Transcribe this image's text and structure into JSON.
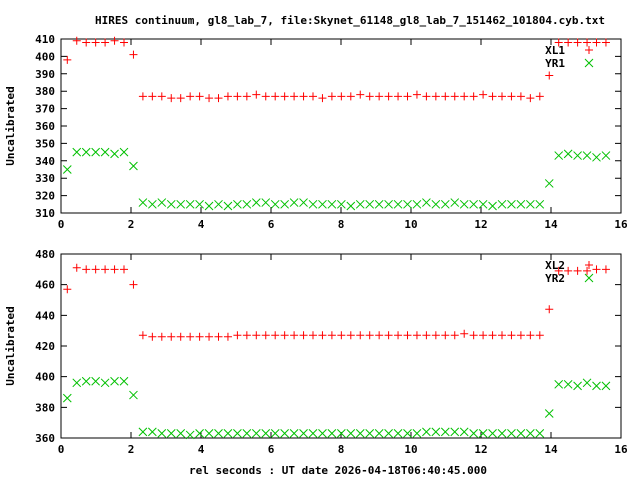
{
  "chart_data": [
    {
      "type": "scatter",
      "title": "HIRES continuum, gl8_lab_7, file:Skynet_61148_gl8_lab_7_151462_101804.cyb.txt",
      "xlabel": "",
      "ylabel": "Uncalibrated",
      "xlim": [
        0,
        16
      ],
      "ylim": [
        310,
        410
      ],
      "xticks": [
        "0",
        "2",
        "4",
        "6",
        "8",
        "10",
        "12",
        "14",
        "16"
      ],
      "yticks": [
        "310",
        "320",
        "330",
        "340",
        "350",
        "360",
        "370",
        "380",
        "390",
        "400",
        "410"
      ],
      "x_start": 0.18,
      "x_step": 0.27,
      "series": [
        {
          "name": "XL1",
          "marker": "plus",
          "color": "#ff0000",
          "values": [
            398,
            409,
            408,
            408,
            408,
            409,
            408,
            401,
            377,
            377,
            377,
            376,
            376,
            377,
            377,
            376,
            376,
            377,
            377,
            377,
            378,
            377,
            377,
            377,
            377,
            377,
            377,
            376,
            377,
            377,
            377,
            378,
            377,
            377,
            377,
            377,
            377,
            378,
            377,
            377,
            377,
            377,
            377,
            377,
            378,
            377,
            377,
            377,
            377,
            376,
            377,
            389,
            408,
            408,
            408,
            408,
            408,
            408
          ]
        },
        {
          "name": "YR1",
          "marker": "cross",
          "color": "#00c000",
          "values": [
            335,
            345,
            345,
            345,
            345,
            344,
            345,
            337,
            316,
            315,
            316,
            315,
            315,
            315,
            315,
            314,
            315,
            314,
            315,
            315,
            316,
            316,
            315,
            315,
            316,
            316,
            315,
            315,
            315,
            315,
            314,
            315,
            315,
            315,
            315,
            315,
            315,
            315,
            316,
            315,
            315,
            316,
            315,
            315,
            315,
            314,
            315,
            315,
            315,
            315,
            315,
            327,
            343,
            344,
            343,
            343,
            342,
            343
          ]
        }
      ],
      "legend_position": "top-right"
    },
    {
      "type": "scatter",
      "xlabel": "rel seconds : UT date 2026-04-18T06:40:45.000",
      "ylabel": "Uncalibrated",
      "xlim": [
        0,
        16
      ],
      "ylim": [
        360,
        480
      ],
      "xticks": [
        "0",
        "2",
        "4",
        "6",
        "8",
        "10",
        "12",
        "14",
        "16"
      ],
      "yticks": [
        "360",
        "380",
        "400",
        "420",
        "440",
        "460",
        "480"
      ],
      "x_start": 0.18,
      "x_step": 0.27,
      "series": [
        {
          "name": "XL2",
          "marker": "plus",
          "color": "#ff0000",
          "values": [
            457,
            471,
            470,
            470,
            470,
            470,
            470,
            460,
            427,
            426,
            426,
            426,
            426,
            426,
            426,
            426,
            426,
            426,
            427,
            427,
            427,
            427,
            427,
            427,
            427,
            427,
            427,
            427,
            427,
            427,
            427,
            427,
            427,
            427,
            427,
            427,
            427,
            427,
            427,
            427,
            427,
            427,
            428,
            427,
            427,
            427,
            427,
            427,
            427,
            427,
            427,
            444,
            469,
            469,
            469,
            469,
            470,
            470
          ]
        },
        {
          "name": "YR2",
          "marker": "cross",
          "color": "#00c000",
          "values": [
            386,
            396,
            397,
            397,
            396,
            397,
            397,
            388,
            364,
            364,
            363,
            363,
            363,
            362,
            363,
            363,
            363,
            363,
            363,
            363,
            363,
            363,
            363,
            363,
            363,
            363,
            363,
            363,
            363,
            363,
            363,
            363,
            363,
            363,
            363,
            363,
            363,
            363,
            364,
            364,
            364,
            364,
            364,
            363,
            363,
            363,
            363,
            363,
            363,
            363,
            363,
            376,
            395,
            395,
            394,
            396,
            394,
            394
          ]
        }
      ],
      "legend_position": "top-right"
    }
  ]
}
